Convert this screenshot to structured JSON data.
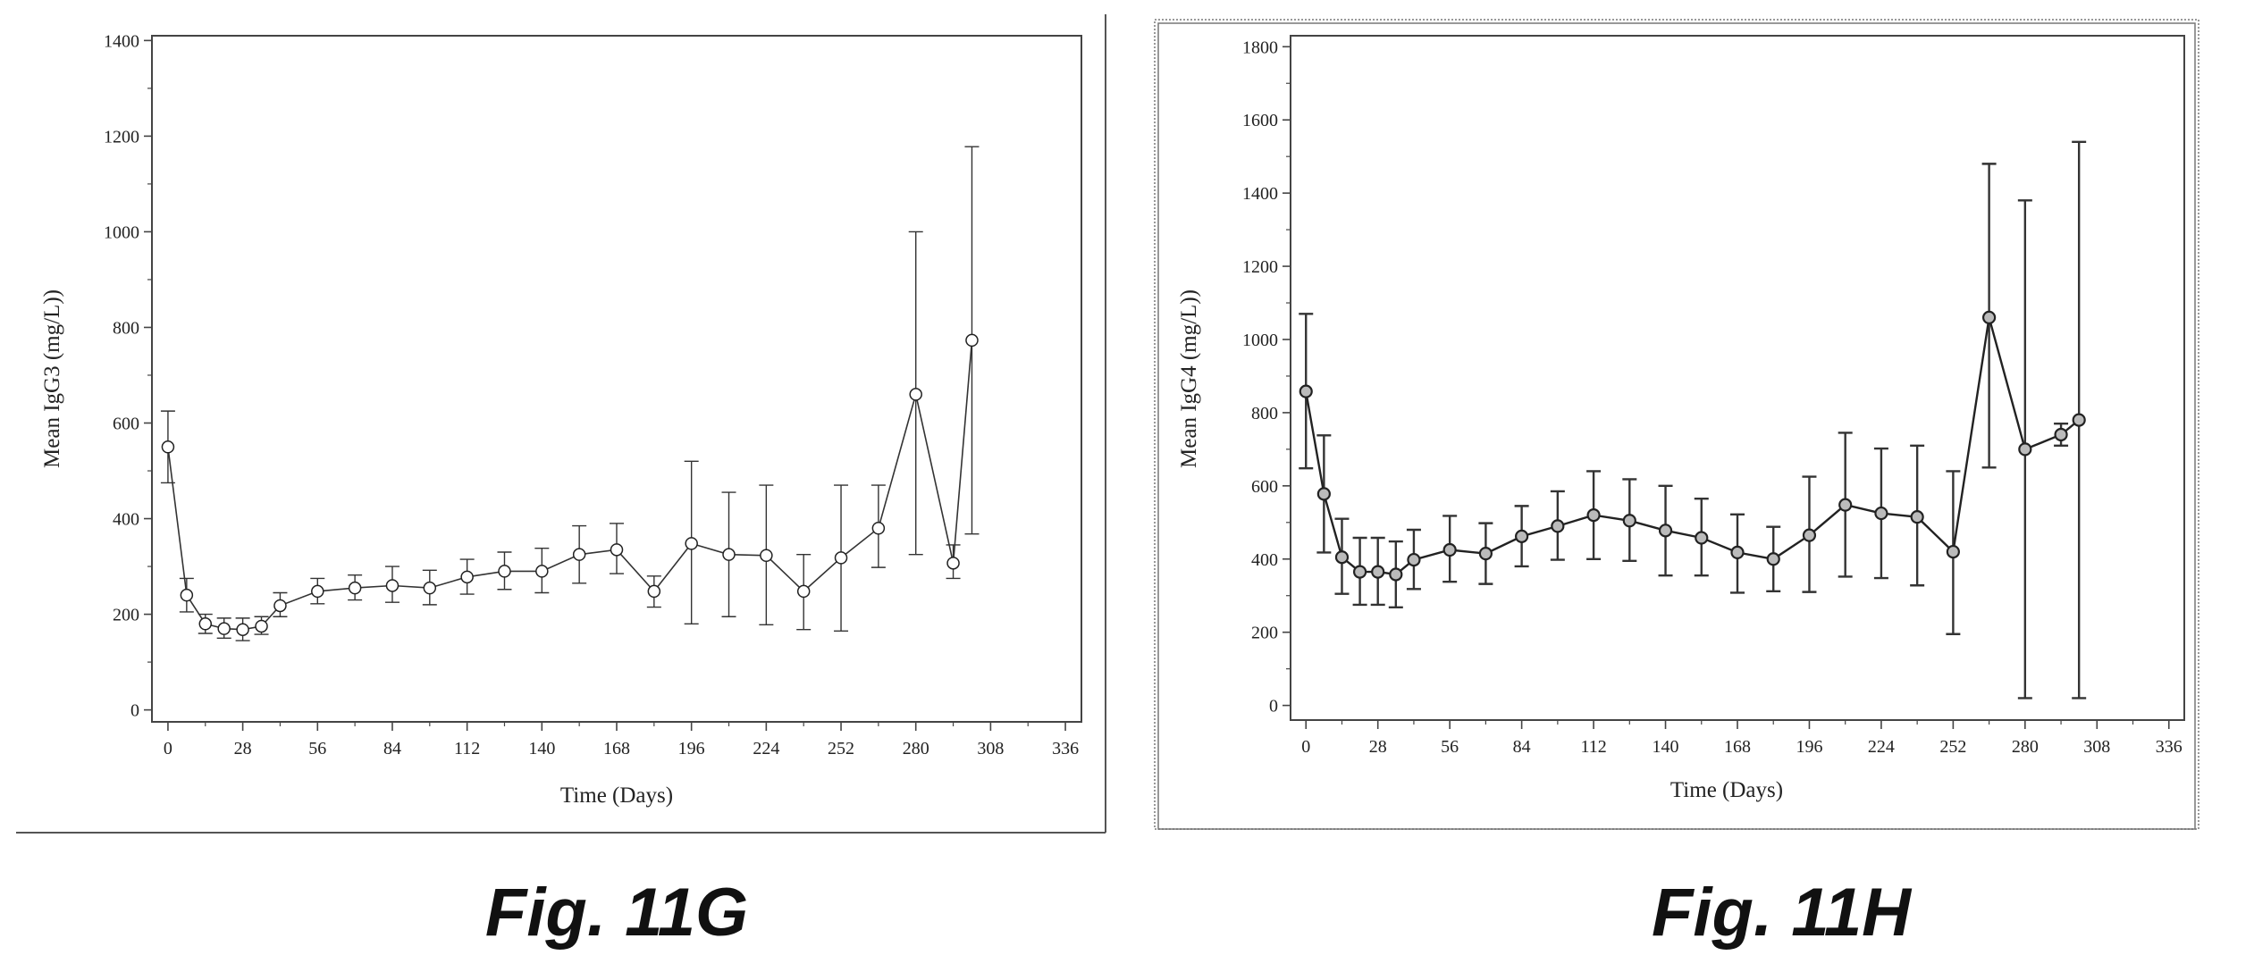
{
  "figures": [
    {
      "caption": "Fig. 11G"
    },
    {
      "caption": "Fig. 11H"
    }
  ],
  "chart_data": [
    {
      "type": "line",
      "xlabel": "Time (Days)",
      "ylabel": "Mean IgG3 (mg/L))",
      "xlim": [
        -6,
        342
      ],
      "ylim": [
        -25,
        1410
      ],
      "xticks": [
        0,
        28,
        56,
        84,
        112,
        140,
        168,
        196,
        224,
        252,
        280,
        308,
        336
      ],
      "yticks": [
        0,
        200,
        400,
        600,
        800,
        1000,
        1200,
        1400
      ],
      "marker": "open-circle",
      "error_bars": true,
      "series": [
        {
          "x": [
            0,
            7,
            14,
            21,
            28,
            35,
            42,
            56,
            70,
            84,
            98,
            112,
            126,
            140,
            154,
            168,
            182,
            196,
            210,
            224,
            238,
            252,
            266,
            280,
            294,
            301
          ],
          "y": [
            550,
            240,
            180,
            170,
            168,
            175,
            218,
            248,
            255,
            260,
            255,
            278,
            290,
            290,
            325,
            335,
            248,
            348,
            325,
            323,
            248,
            318,
            380,
            660,
            307,
            773
          ],
          "err_low": [
            475,
            205,
            160,
            150,
            145,
            158,
            195,
            222,
            230,
            225,
            220,
            242,
            252,
            245,
            265,
            285,
            215,
            180,
            195,
            178,
            168,
            165,
            298,
            325,
            275,
            368
          ],
          "err_high": [
            625,
            275,
            200,
            192,
            192,
            195,
            245,
            275,
            282,
            300,
            292,
            315,
            330,
            338,
            385,
            390,
            280,
            520,
            455,
            470,
            325,
            470,
            470,
            1000,
            345,
            1178
          ]
        }
      ]
    },
    {
      "type": "line",
      "xlabel": "Time (Days)",
      "ylabel": "Mean IgG4 (mg/L))",
      "xlim": [
        -6,
        342
      ],
      "ylim": [
        -40,
        1830
      ],
      "xticks": [
        0,
        28,
        56,
        84,
        112,
        140,
        168,
        196,
        224,
        252,
        280,
        308,
        336
      ],
      "yticks": [
        0,
        200,
        400,
        600,
        800,
        1000,
        1200,
        1400,
        1600,
        1800
      ],
      "marker": "circle",
      "error_bars": true,
      "series": [
        {
          "x": [
            0,
            7,
            14,
            21,
            28,
            35,
            42,
            56,
            70,
            84,
            98,
            112,
            126,
            140,
            154,
            168,
            182,
            196,
            210,
            224,
            238,
            252,
            266,
            280,
            294,
            301
          ],
          "y": [
            858,
            578,
            405,
            365,
            365,
            358,
            398,
            425,
            415,
            462,
            490,
            520,
            505,
            478,
            458,
            418,
            400,
            465,
            548,
            525,
            515,
            420,
            1060,
            700,
            740,
            780
          ],
          "err_low": [
            648,
            418,
            305,
            275,
            275,
            268,
            318,
            338,
            332,
            380,
            398,
            400,
            395,
            355,
            355,
            308,
            312,
            310,
            352,
            348,
            328,
            195,
            650,
            20,
            710,
            20
          ],
          "err_high": [
            1070,
            738,
            510,
            458,
            458,
            448,
            480,
            518,
            498,
            545,
            585,
            640,
            618,
            600,
            565,
            522,
            488,
            625,
            745,
            702,
            710,
            640,
            1480,
            1380,
            770,
            1540
          ]
        }
      ]
    }
  ]
}
